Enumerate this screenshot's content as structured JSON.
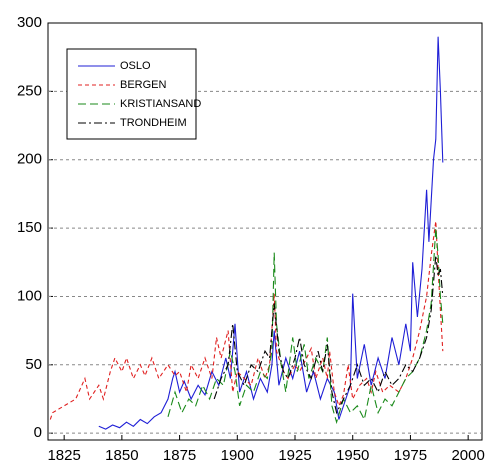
{
  "chart_data": {
    "type": "line",
    "xlim": [
      1818,
      2006
    ],
    "ylim": [
      -5,
      300
    ],
    "xticks": [
      1825,
      1850,
      1875,
      1900,
      1925,
      1950,
      1975,
      2000
    ],
    "yticks": [
      0,
      50,
      100,
      150,
      200,
      250,
      300
    ],
    "grid": true,
    "legend": "upper left",
    "series": [
      {
        "name": "OSLO",
        "color": "#1f1fd6",
        "style": "solid",
        "x": [
          1840,
          1843,
          1846,
          1849,
          1852,
          1855,
          1858,
          1861,
          1864,
          1867,
          1870,
          1872,
          1873,
          1875,
          1877,
          1880,
          1883,
          1886,
          1889,
          1892,
          1895,
          1897,
          1899,
          1901,
          1904,
          1907,
          1910,
          1913,
          1915,
          1916,
          1918,
          1921,
          1924,
          1927,
          1930,
          1933,
          1936,
          1939,
          1942,
          1944,
          1947,
          1949,
          1950,
          1952,
          1955,
          1958,
          1961,
          1964,
          1967,
          1970,
          1973,
          1975,
          1976,
          1978,
          1980,
          1982,
          1983,
          1984,
          1985,
          1986,
          1987,
          1988,
          1989
        ],
        "values": [
          5,
          3,
          6,
          4,
          8,
          5,
          10,
          7,
          12,
          15,
          25,
          40,
          45,
          30,
          38,
          25,
          35,
          28,
          45,
          35,
          55,
          40,
          80,
          30,
          45,
          25,
          40,
          30,
          50,
          75,
          35,
          55,
          40,
          60,
          30,
          45,
          25,
          40,
          30,
          10,
          25,
          35,
          102,
          40,
          65,
          35,
          55,
          40,
          70,
          50,
          80,
          60,
          125,
          85,
          120,
          178,
          140,
          170,
          200,
          215,
          290,
          250,
          198
        ]
      },
      {
        "name": "BERGEN",
        "color": "#e02020",
        "style": "dash",
        "x": [
          1819,
          1820,
          1825,
          1830,
          1834,
          1836,
          1840,
          1842,
          1845,
          1847,
          1850,
          1852,
          1855,
          1858,
          1860,
          1863,
          1866,
          1870,
          1873,
          1875,
          1878,
          1880,
          1883,
          1886,
          1889,
          1891,
          1893,
          1896,
          1898,
          1900,
          1903,
          1906,
          1909,
          1912,
          1914,
          1916,
          1917,
          1920,
          1922,
          1925,
          1927,
          1930,
          1932,
          1934,
          1937,
          1939,
          1940,
          1942,
          1944,
          1946,
          1948,
          1950,
          1953,
          1956,
          1958,
          1960,
          1963,
          1966,
          1970,
          1973,
          1976,
          1979,
          1982,
          1984,
          1986,
          1987,
          1988,
          1989
        ],
        "values": [
          10,
          15,
          20,
          25,
          40,
          25,
          35,
          25,
          45,
          55,
          45,
          55,
          40,
          50,
          42,
          55,
          40,
          50,
          42,
          45,
          30,
          50,
          40,
          55,
          40,
          70,
          55,
          75,
          30,
          45,
          40,
          35,
          55,
          40,
          50,
          102,
          60,
          45,
          40,
          50,
          45,
          55,
          62,
          40,
          55,
          40,
          60,
          30,
          20,
          28,
          50,
          25,
          35,
          40,
          30,
          45,
          30,
          35,
          30,
          40,
          55,
          75,
          100,
          130,
          155,
          120,
          90,
          60
        ]
      },
      {
        "name": "KRISTIANSAND",
        "color": "#1a8a1a",
        "style": "longdash",
        "x": [
          1870,
          1873,
          1876,
          1879,
          1882,
          1885,
          1888,
          1891,
          1894,
          1897,
          1899,
          1901,
          1904,
          1907,
          1910,
          1913,
          1915,
          1916,
          1917,
          1919,
          1921,
          1924,
          1926,
          1929,
          1931,
          1934,
          1937,
          1939,
          1941,
          1943,
          1946,
          1949,
          1952,
          1955,
          1958,
          1961,
          1964,
          1967,
          1970,
          1973,
          1976,
          1979,
          1982,
          1984,
          1986,
          1987,
          1988,
          1989
        ],
        "values": [
          12,
          30,
          15,
          25,
          20,
          35,
          25,
          40,
          35,
          60,
          45,
          20,
          35,
          30,
          45,
          40,
          60,
          132,
          80,
          50,
          30,
          70,
          45,
          65,
          40,
          55,
          45,
          70,
          20,
          8,
          25,
          15,
          20,
          10,
          35,
          15,
          25,
          20,
          30,
          40,
          45,
          55,
          75,
          95,
          150,
          130,
          100,
          80
        ]
      },
      {
        "name": "TRONDHEIM",
        "color": "#000000",
        "style": "dashdot",
        "x": [
          1890,
          1893,
          1896,
          1898,
          1900,
          1903,
          1906,
          1909,
          1912,
          1914,
          1916,
          1918,
          1920,
          1922,
          1925,
          1927,
          1929,
          1932,
          1935,
          1937,
          1939,
          1941,
          1943,
          1946,
          1949,
          1952,
          1955,
          1958,
          1961,
          1964,
          1967,
          1970,
          1973,
          1976,
          1979,
          1982,
          1984,
          1985,
          1986,
          1987,
          1988,
          1989
        ],
        "values": [
          25,
          40,
          50,
          80,
          45,
          35,
          50,
          45,
          60,
          55,
          95,
          60,
          45,
          40,
          55,
          70,
          50,
          40,
          60,
          45,
          65,
          30,
          15,
          25,
          35,
          50,
          35,
          40,
          30,
          45,
          35,
          40,
          50,
          45,
          55,
          70,
          90,
          110,
          130,
          115,
          120,
          100
        ]
      }
    ]
  }
}
